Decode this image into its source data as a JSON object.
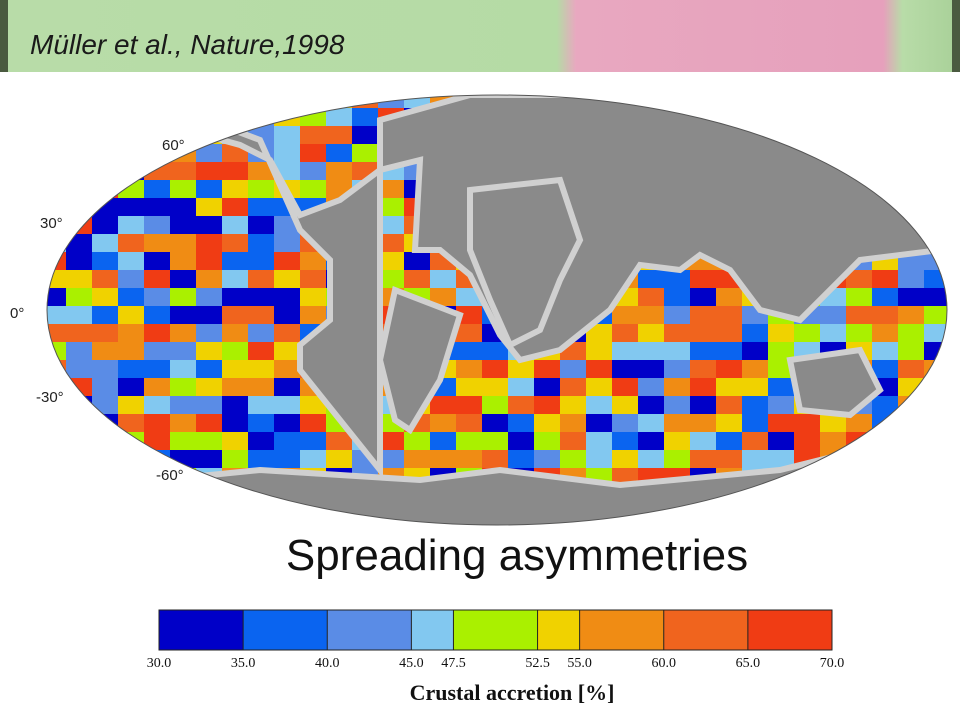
{
  "citation": "Müller et al., Nature,1998",
  "map": {
    "lat_labels": [
      "60°",
      "30°",
      "0°",
      "-30°",
      "-60°"
    ]
  },
  "title": "Spreading asymmetries",
  "colorbar": {
    "range": [
      30,
      70
    ],
    "ticks": [
      {
        "value": 30,
        "label": "30.0"
      },
      {
        "value": 35,
        "label": "35.0"
      },
      {
        "value": 40,
        "label": "40.0"
      },
      {
        "value": 45,
        "label": "45.0"
      },
      {
        "value": 47.5,
        "label": "47.5"
      },
      {
        "value": 52.5,
        "label": "52.5"
      },
      {
        "value": 55,
        "label": "55.0"
      },
      {
        "value": 60,
        "label": "60.0"
      },
      {
        "value": 65,
        "label": "65.0"
      },
      {
        "value": 70,
        "label": "70.0"
      }
    ],
    "colors": [
      "#0000c8",
      "#0a64f0",
      "#5a8ce6",
      "#82c8f0",
      "#aaf000",
      "#f0d200",
      "#f08c14",
      "#f0641e",
      "#f03c14"
    ],
    "label": "Crustal accretion [%]"
  }
}
